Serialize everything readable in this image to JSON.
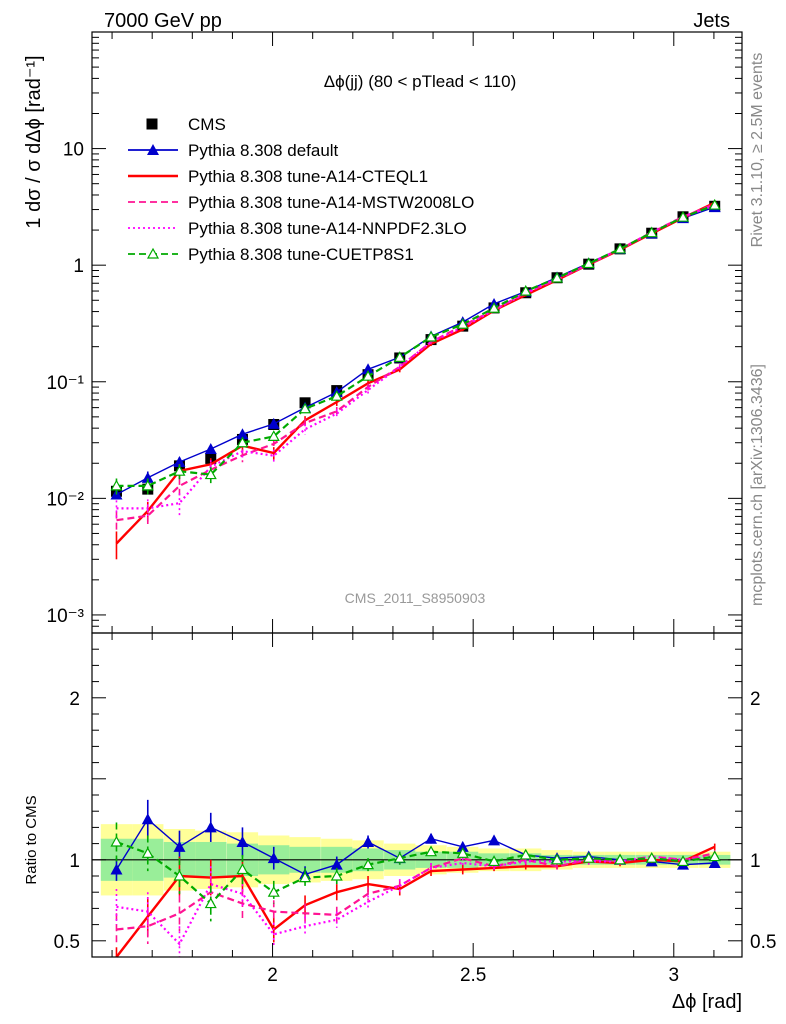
{
  "header": {
    "left": "7000 GeV pp",
    "right": "Jets",
    "rivet": "Rivet 3.1.10, ≥ 2.5M events",
    "mcplots": "mcplots.cern.ch [arXiv:1306.3436]"
  },
  "chart_data": {
    "type": "line",
    "title": "Δϕ(jj) (80 < pTlead <  110)",
    "watermark": "CMS_2011_S8950903",
    "xlabel": "Δϕ [rad]",
    "ylabel_top": "1 dσ / σ dΔϕ [rad⁻¹]",
    "ylabel_ratio": "Ratio to CMS",
    "xlim": [
      1.55,
      3.17
    ],
    "ylim_top": [
      0.0007,
      100
    ],
    "ylog": true,
    "ylim_ratio": [
      0.4,
      2.4
    ],
    "x_ticklabels": [
      "2",
      "2.5",
      "3"
    ],
    "y_ticklabels_top": [
      "10⁻³",
      "10⁻²",
      "10⁻¹",
      "1",
      "10"
    ],
    "y_ticklabels_ratio": [
      "0.5",
      "1",
      "2"
    ],
    "legend_position": "top-left",
    "x": [
      1.611,
      1.689,
      1.768,
      1.846,
      1.925,
      2.003,
      2.081,
      2.16,
      2.238,
      2.317,
      2.395,
      2.474,
      2.552,
      2.631,
      2.709,
      2.788,
      2.866,
      2.945,
      3.023,
      3.102
    ],
    "data": {
      "name": "CMS",
      "values": [
        0.0115,
        0.012,
        0.019,
        0.022,
        0.032,
        0.043,
        0.066,
        0.084,
        0.115,
        0.16,
        0.23,
        0.3,
        0.43,
        0.58,
        0.78,
        1.02,
        1.38,
        1.88,
        2.6,
        3.2
      ],
      "band_inner": [
        0.13,
        0.13,
        0.11,
        0.11,
        0.1,
        0.09,
        0.08,
        0.08,
        0.07,
        0.06,
        0.05,
        0.05,
        0.04,
        0.04,
        0.03,
        0.03,
        0.03,
        0.03,
        0.03,
        0.03
      ],
      "band_outer": [
        0.22,
        0.22,
        0.19,
        0.18,
        0.17,
        0.15,
        0.14,
        0.13,
        0.12,
        0.1,
        0.09,
        0.08,
        0.07,
        0.07,
        0.06,
        0.05,
        0.05,
        0.05,
        0.05,
        0.05
      ]
    },
    "series": [
      {
        "name": "Pythia 8.308 default",
        "color": "#0000cc",
        "dash": "solid",
        "marker": "triangle",
        "values": [
          0.0108,
          0.015,
          0.0205,
          0.0265,
          0.0355,
          0.0435,
          0.06,
          0.0815,
          0.128,
          0.162,
          0.245,
          0.325,
          0.465,
          0.595,
          0.785,
          1.04,
          1.38,
          1.87,
          2.53,
          3.15
        ],
        "errors": [
          0.0008,
          0.002,
          0.002,
          0.002,
          0.003,
          0.003,
          0.003,
          0.004,
          0.005,
          0.006,
          0.008,
          0.01,
          0.012,
          0.015,
          0.02,
          0.02,
          0.03,
          0.03,
          0.04,
          0.05
        ]
      },
      {
        "name": "Pythia 8.308 tune-A14-CTEQL1",
        "color": "#ff0000",
        "dash": "solid",
        "marker": "none",
        "values": [
          0.0041,
          0.0078,
          0.0172,
          0.0196,
          0.0283,
          0.0245,
          0.0467,
          0.067,
          0.0971,
          0.1275,
          0.2114,
          0.2814,
          0.4081,
          0.5547,
          0.7453,
          1.0114,
          1.3542,
          1.8706,
          2.547,
          3.4368
        ],
        "errors": [
          0.0011,
          0.0015,
          0.0025,
          0.0025,
          0.003,
          0.003,
          0.004,
          0.005,
          0.006,
          0.007,
          0.009,
          0.01,
          0.013,
          0.016,
          0.02,
          0.02,
          0.03,
          0.03,
          0.04,
          0.05
        ]
      },
      {
        "name": "Pythia 8.308 tune-A14-MSTW2008LO",
        "color": "#ff1493",
        "dash": "dashed",
        "marker": "none",
        "values": [
          0.0065,
          0.0071,
          0.0128,
          0.0176,
          0.0234,
          0.0293,
          0.0443,
          0.0558,
          0.0903,
          0.1344,
          0.2191,
          0.3024,
          0.413,
          0.58,
          0.7508,
          1.0208,
          1.3721,
          1.9116,
          2.6,
          3.348
        ],
        "errors": [
          0.0012,
          0.0015,
          0.0022,
          0.0025,
          0.003,
          0.003,
          0.004,
          0.005,
          0.006,
          0.007,
          0.009,
          0.01,
          0.013,
          0.016,
          0.02,
          0.02,
          0.03,
          0.03,
          0.04,
          0.05
        ]
      },
      {
        "name": "Pythia 8.308 tune-A14-NNPDF2.3LO",
        "color": "#ff00ff",
        "dash": "dotted",
        "marker": "none",
        "values": [
          0.0082,
          0.0082,
          0.0091,
          0.0187,
          0.0254,
          0.0232,
          0.0392,
          0.0533,
          0.085,
          0.1344,
          0.2191,
          0.2931,
          0.4124,
          0.5731,
          0.7706,
          1.0191,
          1.3748,
          1.9116,
          2.6,
          3.2784
        ],
        "errors": [
          0.0014,
          0.0016,
          0.002,
          0.0025,
          0.003,
          0.003,
          0.004,
          0.005,
          0.006,
          0.007,
          0.009,
          0.01,
          0.013,
          0.016,
          0.02,
          0.02,
          0.03,
          0.03,
          0.04,
          0.05
        ]
      },
      {
        "name": "Pythia 8.308 tune-CUETP8S1",
        "color": "#00aa00",
        "dash": "dashed",
        "marker": "open-triangle",
        "values": [
          0.0128,
          0.0128,
          0.0171,
          0.016,
          0.03,
          0.034,
          0.0587,
          0.0752,
          0.1116,
          0.1619,
          0.2421,
          0.3114,
          0.4272,
          0.5986,
          0.7768,
          1.0329,
          1.3776,
          1.8997,
          2.5792,
          3.2784
        ],
        "errors": [
          0.002,
          0.002,
          0.0025,
          0.0025,
          0.003,
          0.003,
          0.004,
          0.005,
          0.006,
          0.007,
          0.009,
          0.01,
          0.013,
          0.016,
          0.02,
          0.02,
          0.03,
          0.03,
          0.04,
          0.05
        ]
      }
    ],
    "ratio": {
      "reference": 1.0,
      "series": [
        {
          "name": "Pythia 8.308 default",
          "values": [
            0.94,
            1.25,
            1.08,
            1.2,
            1.11,
            1.01,
            0.91,
            0.97,
            1.11,
            1.01,
            1.13,
            1.08,
            1.12,
            1.03,
            1.01,
            1.02,
            1.0,
            0.99,
            0.97,
            0.98
          ],
          "errors": [
            0.07,
            0.12,
            0.1,
            0.09,
            0.09,
            0.07,
            0.05,
            0.05,
            0.04,
            0.04,
            0.03,
            0.03,
            0.02,
            0.02,
            0.02,
            0.02,
            0.02,
            0.02,
            0.02,
            0.02
          ]
        },
        {
          "name": "Pythia 8.308 tune-A14-CTEQL1",
          "values": [
            0.36,
            0.65,
            0.9,
            0.89,
            0.9,
            0.57,
            0.72,
            0.8,
            0.85,
            0.82,
            0.93,
            0.94,
            0.95,
            0.96,
            0.96,
            0.99,
            0.98,
            1.0,
            0.99,
            1.08
          ],
          "errors": [
            0.1,
            0.12,
            0.12,
            0.11,
            0.1,
            0.08,
            0.06,
            0.05,
            0.05,
            0.04,
            0.03,
            0.03,
            0.02,
            0.02,
            0.02,
            0.02,
            0.02,
            0.02,
            0.02,
            0.02
          ]
        },
        {
          "name": "Pythia 8.308 tune-A14-MSTW2008LO",
          "values": [
            0.57,
            0.59,
            0.67,
            0.8,
            0.73,
            0.68,
            0.67,
            0.66,
            0.79,
            0.84,
            0.95,
            1.01,
            0.96,
            1.0,
            0.96,
            1.0,
            0.99,
            1.02,
            1.0,
            1.04
          ],
          "errors": [
            0.1,
            0.11,
            0.11,
            0.1,
            0.09,
            0.07,
            0.06,
            0.05,
            0.04,
            0.04,
            0.03,
            0.03,
            0.02,
            0.02,
            0.02,
            0.02,
            0.02,
            0.02,
            0.02,
            0.02
          ]
        },
        {
          "name": "Pythia 8.308 tune-A14-NNPDF2.3LO",
          "values": [
            0.71,
            0.68,
            0.48,
            0.85,
            0.79,
            0.54,
            0.59,
            0.63,
            0.74,
            0.84,
            0.95,
            0.98,
            0.96,
            0.99,
            0.99,
            0.99,
            0.99,
            1.02,
            1.0,
            1.02
          ],
          "errors": [
            0.11,
            0.12,
            0.11,
            0.11,
            0.09,
            0.07,
            0.06,
            0.05,
            0.04,
            0.04,
            0.03,
            0.03,
            0.02,
            0.02,
            0.02,
            0.02,
            0.02,
            0.02,
            0.02,
            0.02
          ]
        },
        {
          "name": "Pythia 8.308 tune-CUETP8S1",
          "values": [
            1.11,
            1.04,
            0.9,
            0.73,
            0.94,
            0.8,
            0.89,
            0.9,
            0.97,
            1.01,
            1.05,
            1.04,
            0.99,
            1.03,
            1.0,
            1.01,
            1.0,
            1.01,
            0.99,
            1.02
          ],
          "errors": [
            0.12,
            0.11,
            0.11,
            0.11,
            0.09,
            0.07,
            0.06,
            0.05,
            0.04,
            0.04,
            0.03,
            0.03,
            0.02,
            0.02,
            0.02,
            0.02,
            0.02,
            0.02,
            0.02,
            0.02
          ]
        }
      ]
    }
  }
}
